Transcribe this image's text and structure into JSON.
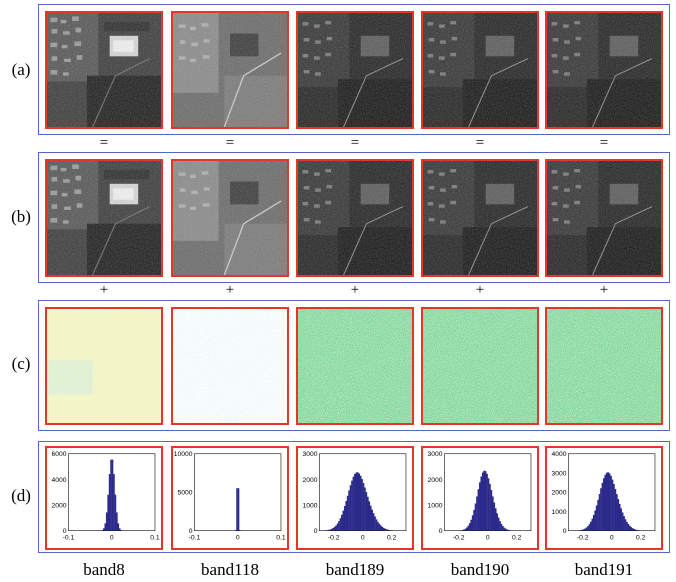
{
  "rows": [
    {
      "label": "(a)"
    },
    {
      "label": "(b)"
    },
    {
      "label": "(c)"
    },
    {
      "label": "(d)"
    }
  ],
  "operators": {
    "equals": "=",
    "plus": "+"
  },
  "bands": [
    {
      "label": "band8",
      "hist": {
        "yticks": [
          "6000",
          "4000",
          "2000",
          "0"
        ],
        "xticks": [
          "-0.1",
          "0",
          "0.1"
        ],
        "ymax": 6000,
        "xmin": -0.1,
        "xmax": 0.1
      }
    },
    {
      "label": "band118",
      "hist": {
        "yticks": [
          "10000",
          "5000",
          "0"
        ],
        "xticks": [
          "-0.1",
          "0",
          "0.1"
        ],
        "ymax": 10000,
        "xmin": -0.1,
        "xmax": 0.1
      }
    },
    {
      "label": "band189",
      "hist": {
        "yticks": [
          "3000",
          "2000",
          "1000",
          "0"
        ],
        "xticks": [
          "-0.2",
          "0",
          "0.2"
        ],
        "ymax": 3000,
        "xmin": -0.3,
        "xmax": 0.3
      }
    },
    {
      "label": "band190",
      "hist": {
        "yticks": [
          "3000",
          "2000",
          "1000",
          "0"
        ],
        "xticks": [
          "-0.2",
          "0",
          "0.2"
        ],
        "ymax": 3000,
        "xmin": -0.3,
        "xmax": 0.3
      }
    },
    {
      "label": "band191",
      "hist": {
        "yticks": [
          "4000",
          "3000",
          "2000",
          "1000",
          "0"
        ],
        "xticks": [
          "-0.2",
          "0",
          "0.2"
        ],
        "ymax": 4000,
        "xmin": -0.3,
        "xmax": 0.3
      }
    }
  ],
  "colors": {
    "frame": "#e8352a",
    "box": "#5566c8",
    "hist_fill": "#2b2a8a",
    "noise_low": "#f6f4b8",
    "noise_mid": "#9fe0e8",
    "noise_high": "#55c89a"
  }
}
